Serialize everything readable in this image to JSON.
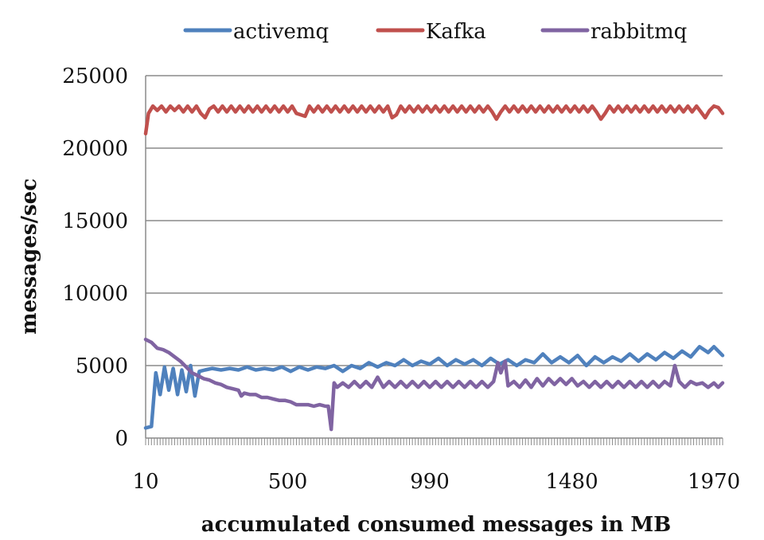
{
  "chart_data": {
    "type": "line",
    "title": "",
    "xlabel": "accumulated consumed messages in MB",
    "ylabel": "messages/sec",
    "ylim": [
      0,
      25000
    ],
    "xlim": [
      10,
      2000
    ],
    "x_tick_labels": [
      "10",
      "500",
      "990",
      "1480",
      "1970"
    ],
    "x_tick_values": [
      10,
      500,
      990,
      1480,
      1970
    ],
    "y_ticks": [
      0,
      5000,
      10000,
      15000,
      20000,
      25000
    ],
    "grid": true,
    "legend_position": "top",
    "series": [
      {
        "name": "activemq",
        "color": "#4f81bd",
        "points": [
          [
            10,
            700
          ],
          [
            30,
            800
          ],
          [
            45,
            4500
          ],
          [
            60,
            3000
          ],
          [
            75,
            4900
          ],
          [
            90,
            3300
          ],
          [
            105,
            4800
          ],
          [
            120,
            3000
          ],
          [
            135,
            4700
          ],
          [
            150,
            3200
          ],
          [
            165,
            5000
          ],
          [
            180,
            2900
          ],
          [
            195,
            4600
          ],
          [
            215,
            4700
          ],
          [
            240,
            4800
          ],
          [
            270,
            4700
          ],
          [
            300,
            4800
          ],
          [
            330,
            4700
          ],
          [
            360,
            4900
          ],
          [
            390,
            4700
          ],
          [
            420,
            4800
          ],
          [
            450,
            4700
          ],
          [
            480,
            4900
          ],
          [
            510,
            4600
          ],
          [
            540,
            4900
          ],
          [
            570,
            4700
          ],
          [
            600,
            4900
          ],
          [
            630,
            4800
          ],
          [
            660,
            5000
          ],
          [
            690,
            4600
          ],
          [
            720,
            5000
          ],
          [
            750,
            4800
          ],
          [
            780,
            5200
          ],
          [
            810,
            4900
          ],
          [
            840,
            5200
          ],
          [
            870,
            5000
          ],
          [
            900,
            5400
          ],
          [
            930,
            5000
          ],
          [
            960,
            5300
          ],
          [
            990,
            5100
          ],
          [
            1020,
            5500
          ],
          [
            1050,
            5000
          ],
          [
            1080,
            5400
          ],
          [
            1110,
            5100
          ],
          [
            1140,
            5400
          ],
          [
            1170,
            5000
          ],
          [
            1200,
            5500
          ],
          [
            1230,
            5100
          ],
          [
            1260,
            5400
          ],
          [
            1290,
            5000
          ],
          [
            1320,
            5400
          ],
          [
            1350,
            5200
          ],
          [
            1380,
            5800
          ],
          [
            1410,
            5200
          ],
          [
            1440,
            5600
          ],
          [
            1470,
            5200
          ],
          [
            1500,
            5700
          ],
          [
            1530,
            5000
          ],
          [
            1560,
            5600
          ],
          [
            1590,
            5200
          ],
          [
            1620,
            5600
          ],
          [
            1650,
            5300
          ],
          [
            1680,
            5800
          ],
          [
            1710,
            5300
          ],
          [
            1740,
            5800
          ],
          [
            1770,
            5400
          ],
          [
            1800,
            5900
          ],
          [
            1830,
            5500
          ],
          [
            1860,
            6000
          ],
          [
            1890,
            5600
          ],
          [
            1920,
            6300
          ],
          [
            1950,
            5900
          ],
          [
            1970,
            6300
          ],
          [
            2000,
            5700
          ]
        ]
      },
      {
        "name": "Kafka",
        "color": "#c0504d",
        "points": [
          [
            10,
            21000
          ],
          [
            20,
            22400
          ],
          [
            35,
            22900
          ],
          [
            50,
            22600
          ],
          [
            65,
            22900
          ],
          [
            80,
            22500
          ],
          [
            95,
            22900
          ],
          [
            110,
            22600
          ],
          [
            125,
            22900
          ],
          [
            140,
            22500
          ],
          [
            155,
            22900
          ],
          [
            170,
            22500
          ],
          [
            185,
            22900
          ],
          [
            200,
            22400
          ],
          [
            215,
            22100
          ],
          [
            230,
            22700
          ],
          [
            245,
            22900
          ],
          [
            260,
            22500
          ],
          [
            275,
            22900
          ],
          [
            290,
            22500
          ],
          [
            305,
            22900
          ],
          [
            320,
            22500
          ],
          [
            335,
            22900
          ],
          [
            350,
            22500
          ],
          [
            365,
            22900
          ],
          [
            380,
            22500
          ],
          [
            395,
            22900
          ],
          [
            410,
            22500
          ],
          [
            425,
            22900
          ],
          [
            440,
            22500
          ],
          [
            455,
            22900
          ],
          [
            470,
            22500
          ],
          [
            485,
            22900
          ],
          [
            500,
            22500
          ],
          [
            515,
            22900
          ],
          [
            530,
            22400
          ],
          [
            545,
            22300
          ],
          [
            560,
            22200
          ],
          [
            575,
            22900
          ],
          [
            590,
            22500
          ],
          [
            605,
            22900
          ],
          [
            620,
            22500
          ],
          [
            635,
            22900
          ],
          [
            650,
            22500
          ],
          [
            665,
            22900
          ],
          [
            680,
            22500
          ],
          [
            695,
            22900
          ],
          [
            710,
            22500
          ],
          [
            725,
            22900
          ],
          [
            740,
            22500
          ],
          [
            755,
            22900
          ],
          [
            770,
            22500
          ],
          [
            785,
            22900
          ],
          [
            800,
            22500
          ],
          [
            815,
            22900
          ],
          [
            830,
            22500
          ],
          [
            845,
            22900
          ],
          [
            860,
            22100
          ],
          [
            875,
            22300
          ],
          [
            890,
            22900
          ],
          [
            905,
            22500
          ],
          [
            920,
            22900
          ],
          [
            935,
            22500
          ],
          [
            950,
            22900
          ],
          [
            965,
            22500
          ],
          [
            980,
            22900
          ],
          [
            995,
            22500
          ],
          [
            1010,
            22900
          ],
          [
            1025,
            22500
          ],
          [
            1040,
            22900
          ],
          [
            1055,
            22500
          ],
          [
            1070,
            22900
          ],
          [
            1085,
            22500
          ],
          [
            1100,
            22900
          ],
          [
            1115,
            22500
          ],
          [
            1130,
            22900
          ],
          [
            1145,
            22500
          ],
          [
            1160,
            22900
          ],
          [
            1175,
            22500
          ],
          [
            1190,
            22900
          ],
          [
            1205,
            22500
          ],
          [
            1220,
            22000
          ],
          [
            1235,
            22500
          ],
          [
            1250,
            22900
          ],
          [
            1265,
            22500
          ],
          [
            1280,
            22900
          ],
          [
            1295,
            22500
          ],
          [
            1310,
            22900
          ],
          [
            1325,
            22500
          ],
          [
            1340,
            22900
          ],
          [
            1355,
            22500
          ],
          [
            1370,
            22900
          ],
          [
            1385,
            22500
          ],
          [
            1400,
            22900
          ],
          [
            1415,
            22500
          ],
          [
            1430,
            22900
          ],
          [
            1445,
            22500
          ],
          [
            1460,
            22900
          ],
          [
            1475,
            22500
          ],
          [
            1490,
            22900
          ],
          [
            1505,
            22500
          ],
          [
            1520,
            22900
          ],
          [
            1535,
            22500
          ],
          [
            1550,
            22900
          ],
          [
            1565,
            22500
          ],
          [
            1580,
            22000
          ],
          [
            1595,
            22400
          ],
          [
            1610,
            22900
          ],
          [
            1625,
            22500
          ],
          [
            1640,
            22900
          ],
          [
            1655,
            22500
          ],
          [
            1670,
            22900
          ],
          [
            1685,
            22500
          ],
          [
            1700,
            22900
          ],
          [
            1715,
            22500
          ],
          [
            1730,
            22900
          ],
          [
            1745,
            22500
          ],
          [
            1760,
            22900
          ],
          [
            1775,
            22500
          ],
          [
            1790,
            22900
          ],
          [
            1805,
            22500
          ],
          [
            1820,
            22900
          ],
          [
            1835,
            22500
          ],
          [
            1850,
            22900
          ],
          [
            1865,
            22500
          ],
          [
            1880,
            22900
          ],
          [
            1895,
            22500
          ],
          [
            1910,
            22900
          ],
          [
            1925,
            22500
          ],
          [
            1940,
            22100
          ],
          [
            1955,
            22600
          ],
          [
            1970,
            22900
          ],
          [
            1985,
            22800
          ],
          [
            2000,
            22400
          ]
        ]
      },
      {
        "name": "rabbitmq",
        "color": "#8064a2",
        "points": [
          [
            10,
            6800
          ],
          [
            30,
            6600
          ],
          [
            50,
            6200
          ],
          [
            70,
            6100
          ],
          [
            90,
            5900
          ],
          [
            110,
            5600
          ],
          [
            130,
            5300
          ],
          [
            150,
            4900
          ],
          [
            170,
            4500
          ],
          [
            190,
            4300
          ],
          [
            210,
            4100
          ],
          [
            230,
            4000
          ],
          [
            250,
            3800
          ],
          [
            270,
            3700
          ],
          [
            290,
            3500
          ],
          [
            310,
            3400
          ],
          [
            330,
            3300
          ],
          [
            340,
            2900
          ],
          [
            350,
            3100
          ],
          [
            370,
            3000
          ],
          [
            390,
            3000
          ],
          [
            410,
            2800
          ],
          [
            430,
            2800
          ],
          [
            450,
            2700
          ],
          [
            470,
            2600
          ],
          [
            490,
            2600
          ],
          [
            510,
            2500
          ],
          [
            530,
            2300
          ],
          [
            550,
            2300
          ],
          [
            570,
            2300
          ],
          [
            590,
            2200
          ],
          [
            610,
            2300
          ],
          [
            630,
            2200
          ],
          [
            640,
            2200
          ],
          [
            650,
            600
          ],
          [
            660,
            3800
          ],
          [
            670,
            3500
          ],
          [
            690,
            3800
          ],
          [
            710,
            3500
          ],
          [
            730,
            3900
          ],
          [
            750,
            3500
          ],
          [
            770,
            3900
          ],
          [
            790,
            3500
          ],
          [
            810,
            4200
          ],
          [
            830,
            3500
          ],
          [
            850,
            3900
          ],
          [
            870,
            3500
          ],
          [
            890,
            3900
          ],
          [
            910,
            3500
          ],
          [
            930,
            3900
          ],
          [
            950,
            3500
          ],
          [
            970,
            3900
          ],
          [
            990,
            3500
          ],
          [
            1010,
            3900
          ],
          [
            1030,
            3500
          ],
          [
            1050,
            3900
          ],
          [
            1070,
            3500
          ],
          [
            1090,
            3900
          ],
          [
            1110,
            3500
          ],
          [
            1130,
            3900
          ],
          [
            1150,
            3500
          ],
          [
            1170,
            3900
          ],
          [
            1190,
            3500
          ],
          [
            1210,
            3900
          ],
          [
            1225,
            5200
          ],
          [
            1235,
            4500
          ],
          [
            1250,
            5300
          ],
          [
            1260,
            3600
          ],
          [
            1280,
            3900
          ],
          [
            1300,
            3500
          ],
          [
            1320,
            4000
          ],
          [
            1340,
            3500
          ],
          [
            1360,
            4100
          ],
          [
            1380,
            3600
          ],
          [
            1400,
            4100
          ],
          [
            1420,
            3700
          ],
          [
            1440,
            4100
          ],
          [
            1460,
            3700
          ],
          [
            1480,
            4100
          ],
          [
            1500,
            3600
          ],
          [
            1520,
            3900
          ],
          [
            1540,
            3500
          ],
          [
            1560,
            3900
          ],
          [
            1580,
            3500
          ],
          [
            1600,
            3900
          ],
          [
            1620,
            3500
          ],
          [
            1640,
            3900
          ],
          [
            1660,
            3500
          ],
          [
            1680,
            3900
          ],
          [
            1700,
            3500
          ],
          [
            1720,
            3900
          ],
          [
            1740,
            3500
          ],
          [
            1760,
            3900
          ],
          [
            1780,
            3500
          ],
          [
            1800,
            3900
          ],
          [
            1820,
            3600
          ],
          [
            1835,
            5000
          ],
          [
            1850,
            3900
          ],
          [
            1870,
            3500
          ],
          [
            1890,
            3900
          ],
          [
            1910,
            3700
          ],
          [
            1930,
            3800
          ],
          [
            1950,
            3500
          ],
          [
            1970,
            3800
          ],
          [
            1985,
            3500
          ],
          [
            2000,
            3800
          ]
        ]
      }
    ]
  }
}
